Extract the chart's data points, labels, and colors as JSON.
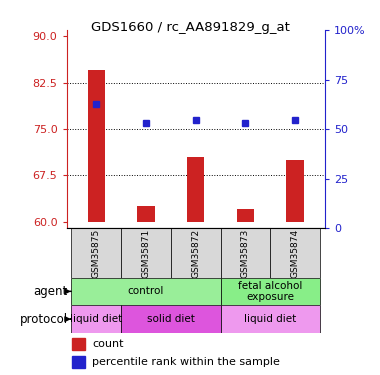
{
  "title": "GDS1660 / rc_AA891829_g_at",
  "samples": [
    "GSM35875",
    "GSM35871",
    "GSM35872",
    "GSM35873",
    "GSM35874"
  ],
  "counts": [
    84.5,
    62.5,
    70.5,
    62,
    70
  ],
  "percentile_ranks": [
    79,
    76,
    76.5,
    76,
    76.5
  ],
  "ylim_left": [
    59,
    91
  ],
  "yticks_left": [
    60,
    67.5,
    75,
    82.5,
    90
  ],
  "ylim_right": [
    0,
    100
  ],
  "yticks_right": [
    0,
    25,
    50,
    75,
    100
  ],
  "ytick_right_labels": [
    "0",
    "25",
    "50",
    "75",
    "100%"
  ],
  "bar_color": "#cc2222",
  "dot_color": "#2222cc",
  "bar_width": 0.35,
  "agent_groups": [
    {
      "label": "control",
      "start": 0,
      "end": 3,
      "color": "#99ee99"
    },
    {
      "label": "fetal alcohol\nexposure",
      "start": 3,
      "end": 5,
      "color": "#88ee88"
    }
  ],
  "protocol_groups": [
    {
      "label": "liquid diet",
      "start": 0,
      "end": 1,
      "color": "#ee99ee"
    },
    {
      "label": "solid diet",
      "start": 1,
      "end": 3,
      "color": "#dd55dd"
    },
    {
      "label": "liquid diet",
      "start": 3,
      "end": 5,
      "color": "#ee99ee"
    }
  ],
  "grid_yticks": [
    67.5,
    75,
    82.5
  ],
  "baseline": 60
}
